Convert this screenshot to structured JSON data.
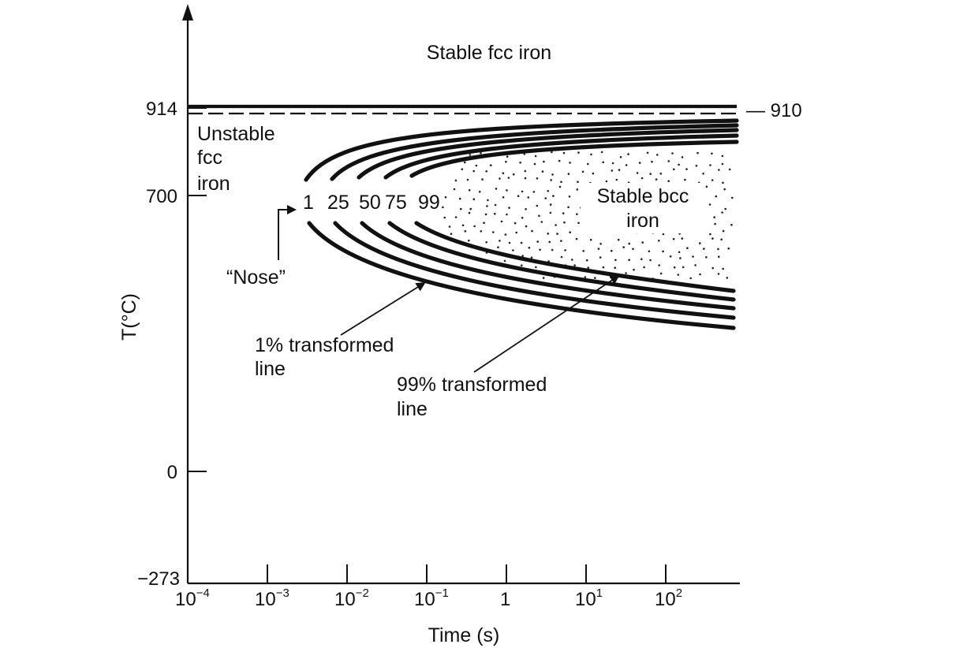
{
  "chart_data": {
    "type": "line",
    "xlabel": "Time (s)",
    "ylabel": "T(°C)",
    "x_scale": "log",
    "xlim": [
      0.0001,
      500
    ],
    "x_ticks": [
      {
        "base": "10",
        "exp": "−4"
      },
      {
        "base": "10",
        "exp": "−3"
      },
      {
        "base": "10",
        "exp": "−2"
      },
      {
        "base": "10",
        "exp": "−1"
      },
      {
        "base": "1",
        "exp": ""
      },
      {
        "base": "10",
        "exp": "1"
      },
      {
        "base": "10",
        "exp": "2"
      }
    ],
    "y_ticks": [
      {
        "value": 914,
        "label": "914"
      },
      {
        "value": 700,
        "label": "700"
      },
      {
        "value": 0,
        "label": "0"
      },
      {
        "value": -273,
        "label": "−273"
      }
    ],
    "equilibrium_lines": [
      {
        "name": "914",
        "value": 914,
        "style": "solid"
      },
      {
        "name": "910",
        "value": 910,
        "style": "dashed",
        "label": "— 910"
      }
    ],
    "series": [
      {
        "name": "1",
        "nose_time_s": 0.0023,
        "nose_temp_c": 690
      },
      {
        "name": "25",
        "nose_time_s": 0.0055,
        "nose_temp_c": 690
      },
      {
        "name": "50",
        "nose_time_s": 0.013,
        "nose_temp_c": 690
      },
      {
        "name": "75",
        "nose_time_s": 0.03,
        "nose_temp_c": 690
      },
      {
        "name": "99",
        "nose_time_s": 0.07,
        "nose_temp_c": 690
      }
    ],
    "annotations": {
      "stable_fcc": "Stable fcc iron",
      "unstable_fcc": [
        "Unstable",
        "fcc",
        "iron"
      ],
      "stable_bcc": [
        "Stable bcc",
        "iron"
      ],
      "nose": "“Nose”",
      "one_pct": [
        "1% transformed",
        "line"
      ],
      "ninetynine_pct": [
        "99% transformed",
        "line"
      ]
    }
  }
}
